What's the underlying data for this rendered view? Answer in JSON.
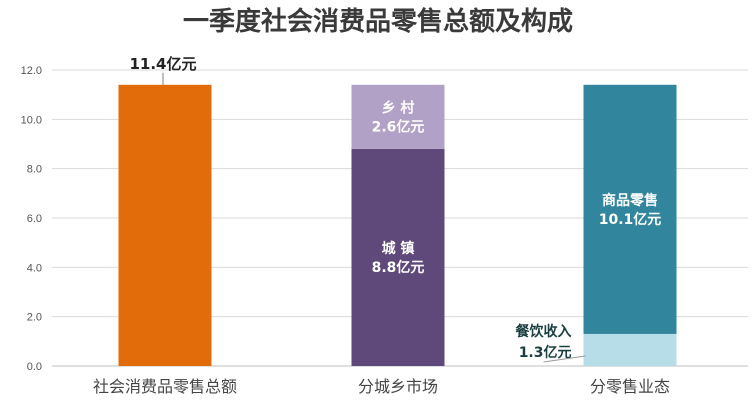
{
  "chart_data": {
    "type": "bar",
    "stacked": true,
    "title": "一季度社会消费品零售总额及构成",
    "xlabel": "",
    "ylabel": "",
    "ylim": [
      0,
      12
    ],
    "yticks": [
      "0.0",
      "2.0",
      "4.0",
      "6.0",
      "8.0",
      "10.0",
      "12.0"
    ],
    "grid": true,
    "legend": "none",
    "categories": [
      "社会消费品零售总额",
      "分城乡市场",
      "分零售业态"
    ],
    "bars": [
      {
        "category": "社会消费品零售总额",
        "segments": [
          {
            "name": "社会消费品零售总额",
            "value": 11.4,
            "color": "#e36c0a",
            "label_lines": [
              "11.4亿元"
            ],
            "label_pos": "above"
          }
        ]
      },
      {
        "category": "分城乡市场",
        "segments": [
          {
            "name": "城 镇",
            "value": 8.8,
            "color": "#5f497a",
            "label_lines": [
              "城 镇",
              "8.8亿元"
            ],
            "label_pos": "inside"
          },
          {
            "name": "乡 村",
            "value": 2.6,
            "color": "#b2a1c7",
            "label_lines": [
              "乡 村",
              "2.6亿元"
            ],
            "label_pos": "inside"
          }
        ]
      },
      {
        "category": "分零售业态",
        "segments": [
          {
            "name": "餐饮收入",
            "value": 1.3,
            "color": "#b7dde8",
            "label_lines": [
              "餐饮收入",
              "1.3亿元"
            ],
            "label_pos": "left"
          },
          {
            "name": "商品零售",
            "value": 10.1,
            "color": "#31859c",
            "label_lines": [
              "商品零售",
              "10.1亿元"
            ],
            "label_pos": "inside"
          }
        ]
      }
    ]
  }
}
